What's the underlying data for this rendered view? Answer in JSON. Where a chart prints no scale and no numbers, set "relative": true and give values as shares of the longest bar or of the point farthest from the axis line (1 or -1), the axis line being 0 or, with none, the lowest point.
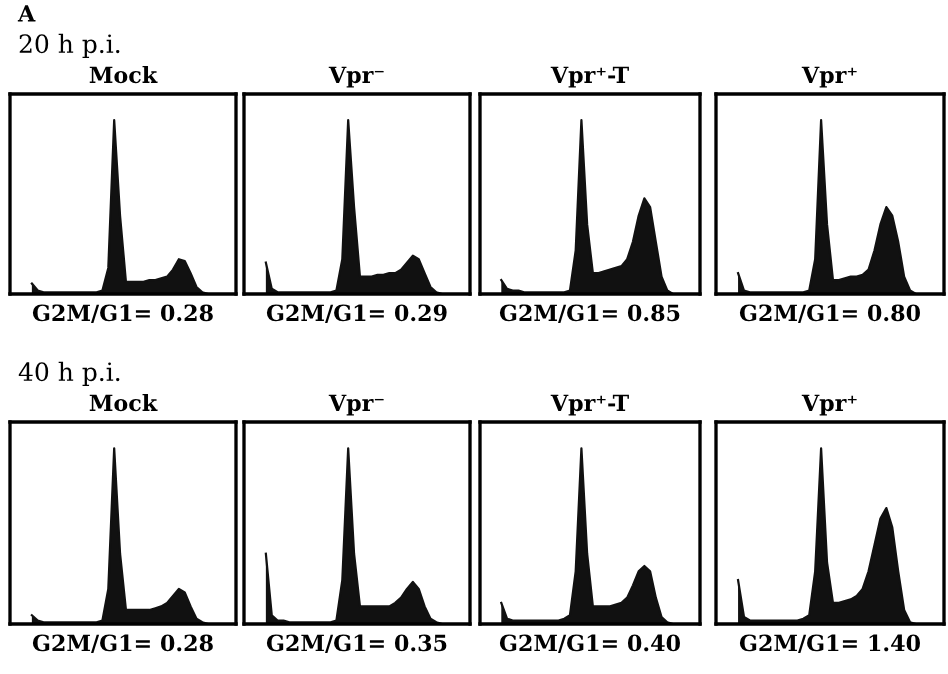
{
  "chart_data": [
    {
      "type": "area",
      "title": "Mock",
      "relative": true,
      "annotations": [
        "A",
        "20 h p.i.",
        "G2M/G1= 0.28"
      ],
      "categories": [
        null,
        null,
        null,
        null,
        null,
        null,
        null,
        null,
        null,
        null,
        null,
        null,
        null,
        null,
        null,
        null,
        null,
        null,
        null,
        null,
        null,
        null,
        null,
        null,
        null,
        null,
        null,
        null,
        null,
        null,
        null,
        null
      ],
      "series": [
        {
          "color": "#111111",
          "values": [
            0.06,
            0.02,
            0.01,
            0.01,
            0.01,
            0.01,
            0.01,
            0.01,
            0.01,
            0.01,
            0.01,
            0.01,
            0.02,
            0.15,
            1,
            0.45,
            0.07,
            0.07,
            0.07,
            0.07,
            0.08,
            0.08,
            0.09,
            0.1,
            0.14,
            0.2,
            0.19,
            0.12,
            0.04,
            0.01,
            0,
            0
          ]
        }
      ]
    },
    {
      "type": "area",
      "title": "Vpr⁻",
      "relative": true,
      "annotations": [
        "G2M/G1= 0.29"
      ],
      "categories": [
        null,
        null,
        null,
        null,
        null,
        null,
        null,
        null,
        null,
        null,
        null,
        null,
        null,
        null,
        null,
        null,
        null,
        null,
        null,
        null,
        null,
        null,
        null,
        null,
        null,
        null,
        null,
        null,
        null,
        null,
        null,
        null
      ],
      "series": [
        {
          "color": "#111111",
          "values": [
            0.18,
            0.03,
            0.01,
            0.01,
            0.01,
            0.01,
            0.01,
            0.01,
            0.01,
            0.01,
            0.01,
            0.01,
            0.02,
            0.2,
            1,
            0.5,
            0.1,
            0.1,
            0.1,
            0.11,
            0.11,
            0.12,
            0.12,
            0.14,
            0.18,
            0.22,
            0.2,
            0.12,
            0.04,
            0.01,
            0,
            0
          ]
        }
      ]
    },
    {
      "type": "area",
      "title": "Vpr⁺-T",
      "relative": true,
      "annotations": [
        "G2M/G1= 0.85"
      ],
      "categories": [
        null,
        null,
        null,
        null,
        null,
        null,
        null,
        null,
        null,
        null,
        null,
        null,
        null,
        null,
        null,
        null,
        null,
        null,
        null,
        null,
        null,
        null,
        null,
        null,
        null,
        null,
        null,
        null,
        null,
        null,
        null,
        null
      ],
      "series": [
        {
          "color": "#111111",
          "values": [
            0.08,
            0.03,
            0.02,
            0.02,
            0.01,
            0.01,
            0.01,
            0.01,
            0.01,
            0.01,
            0.01,
            0.01,
            0.02,
            0.25,
            1,
            0.4,
            0.12,
            0.12,
            0.13,
            0.14,
            0.15,
            0.16,
            0.2,
            0.3,
            0.45,
            0.55,
            0.5,
            0.3,
            0.1,
            0.02,
            0,
            0
          ]
        }
      ]
    },
    {
      "type": "area",
      "title": "Vpr⁺",
      "relative": true,
      "annotations": [
        "G2M/G1= 0.80"
      ],
      "categories": [
        null,
        null,
        null,
        null,
        null,
        null,
        null,
        null,
        null,
        null,
        null,
        null,
        null,
        null,
        null,
        null,
        null,
        null,
        null,
        null,
        null,
        null,
        null,
        null,
        null,
        null,
        null,
        null,
        null,
        null,
        null,
        null
      ],
      "series": [
        {
          "color": "#111111",
          "values": [
            0.12,
            0.02,
            0.01,
            0.01,
            0.01,
            0.01,
            0.01,
            0.01,
            0.01,
            0.01,
            0.01,
            0.01,
            0.02,
            0.2,
            1,
            0.4,
            0.08,
            0.08,
            0.09,
            0.1,
            0.1,
            0.11,
            0.14,
            0.25,
            0.4,
            0.5,
            0.45,
            0.3,
            0.1,
            0.02,
            0,
            0
          ]
        }
      ]
    },
    {
      "type": "area",
      "title": "Mock",
      "relative": true,
      "annotations": [
        "40 h p.i.",
        "G2M/G1= 0.28"
      ],
      "categories": [
        null,
        null,
        null,
        null,
        null,
        null,
        null,
        null,
        null,
        null,
        null,
        null,
        null,
        null,
        null,
        null,
        null,
        null,
        null,
        null,
        null,
        null,
        null,
        null,
        null,
        null,
        null,
        null,
        null,
        null,
        null,
        null
      ],
      "series": [
        {
          "color": "#111111",
          "values": [
            0.05,
            0.02,
            0.01,
            0.01,
            0.01,
            0.01,
            0.01,
            0.01,
            0.01,
            0.01,
            0.01,
            0.01,
            0.02,
            0.2,
            1,
            0.4,
            0.08,
            0.08,
            0.08,
            0.08,
            0.08,
            0.09,
            0.1,
            0.12,
            0.16,
            0.2,
            0.18,
            0.1,
            0.03,
            0.01,
            0,
            0
          ]
        }
      ]
    },
    {
      "type": "area",
      "title": "Vpr⁻",
      "relative": true,
      "annotations": [
        "G2M/G1= 0.35"
      ],
      "categories": [
        null,
        null,
        null,
        null,
        null,
        null,
        null,
        null,
        null,
        null,
        null,
        null,
        null,
        null,
        null,
        null,
        null,
        null,
        null,
        null,
        null,
        null,
        null,
        null,
        null,
        null,
        null,
        null,
        null,
        null,
        null,
        null
      ],
      "series": [
        {
          "color": "#111111",
          "values": [
            0.4,
            0.05,
            0.02,
            0.02,
            0.01,
            0.01,
            0.01,
            0.01,
            0.01,
            0.01,
            0.01,
            0.01,
            0.02,
            0.25,
            1,
            0.4,
            0.1,
            0.1,
            0.1,
            0.1,
            0.1,
            0.1,
            0.12,
            0.15,
            0.2,
            0.24,
            0.2,
            0.1,
            0.03,
            0.01,
            0,
            0
          ]
        }
      ]
    },
    {
      "type": "area",
      "title": "Vpr⁺-T",
      "relative": true,
      "annotations": [
        "G2M/G1= 0.40"
      ],
      "categories": [
        null,
        null,
        null,
        null,
        null,
        null,
        null,
        null,
        null,
        null,
        null,
        null,
        null,
        null,
        null,
        null,
        null,
        null,
        null,
        null,
        null,
        null,
        null,
        null,
        null,
        null,
        null,
        null,
        null,
        null,
        null,
        null
      ],
      "series": [
        {
          "color": "#111111",
          "values": [
            0.12,
            0.03,
            0.02,
            0.02,
            0.02,
            0.02,
            0.02,
            0.02,
            0.02,
            0.02,
            0.02,
            0.03,
            0.05,
            0.3,
            1,
            0.4,
            0.1,
            0.1,
            0.1,
            0.1,
            0.11,
            0.12,
            0.15,
            0.22,
            0.3,
            0.33,
            0.3,
            0.15,
            0.04,
            0.01,
            0,
            0
          ]
        }
      ]
    },
    {
      "type": "area",
      "title": "Vpr⁺",
      "relative": true,
      "annotations": [
        "G2M/G1= 1.40"
      ],
      "categories": [
        null,
        null,
        null,
        null,
        null,
        null,
        null,
        null,
        null,
        null,
        null,
        null,
        null,
        null,
        null,
        null,
        null,
        null,
        null,
        null,
        null,
        null,
        null,
        null,
        null,
        null,
        null,
        null,
        null,
        null,
        null,
        null
      ],
      "series": [
        {
          "color": "#111111",
          "values": [
            0.25,
            0.04,
            0.02,
            0.02,
            0.02,
            0.02,
            0.02,
            0.02,
            0.02,
            0.02,
            0.02,
            0.03,
            0.05,
            0.3,
            1,
            0.35,
            0.12,
            0.12,
            0.13,
            0.14,
            0.16,
            0.2,
            0.3,
            0.45,
            0.6,
            0.66,
            0.55,
            0.3,
            0.08,
            0.01,
            0,
            0
          ]
        }
      ]
    }
  ]
}
